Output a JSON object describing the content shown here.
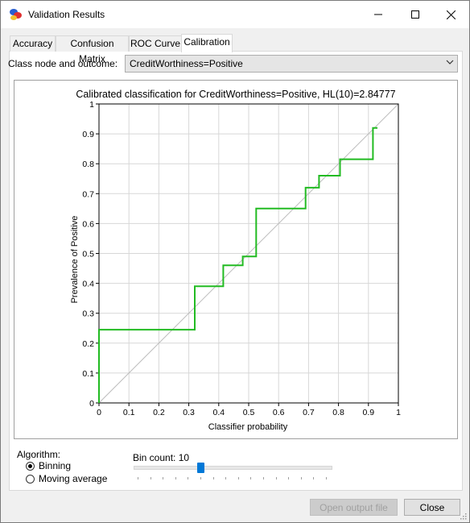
{
  "window": {
    "title": "Validation Results"
  },
  "tabs": [
    {
      "label": "Accuracy",
      "active": false
    },
    {
      "label": "Confusion Matrix",
      "active": false
    },
    {
      "label": "ROC Curve",
      "active": false
    },
    {
      "label": "Calibration",
      "active": true
    }
  ],
  "class_node": {
    "label": "Class node and outcome:",
    "value": "CreditWorthiness=Positive"
  },
  "algorithm": {
    "label": "Algorithm:",
    "options": [
      {
        "label": "Binning",
        "selected": true
      },
      {
        "label": "Moving average",
        "selected": false
      }
    ]
  },
  "bin_count": {
    "label": "Bin count: 10",
    "value": 10,
    "min": 1,
    "max": 30
  },
  "buttons": {
    "open_output": "Open output file",
    "close": "Close"
  },
  "colors": {
    "curve": "#22bb22",
    "diagonal": "#bdbdbd",
    "grid": "#d7d7d7"
  },
  "chart_data": {
    "type": "line",
    "title": "Calibrated classification for CreditWorthiness=Positive, HL(10)=2.84777",
    "xlabel": "Classifier probability",
    "ylabel": "Prevalence of Positive",
    "xlim": [
      0,
      1
    ],
    "ylim": [
      0,
      1
    ],
    "x_ticks": [
      "0",
      "0.1",
      "0.2",
      "0.3",
      "0.4",
      "0.5",
      "0.6",
      "0.7",
      "0.8",
      "0.9",
      "1"
    ],
    "y_ticks": [
      "0",
      "0.1",
      "0.2",
      "0.3",
      "0.4",
      "0.5",
      "0.6",
      "0.7",
      "0.8",
      "0.9",
      "1"
    ],
    "grid": true,
    "series": [
      {
        "x": [
          0,
          0,
          0.32,
          0.32,
          0.415,
          0.415,
          0.48,
          0.48,
          0.525,
          0.525,
          0.69,
          0.69,
          0.735,
          0.735,
          0.805,
          0.805,
          0.915,
          0.915,
          0.93
        ],
        "y": [
          0,
          0.245,
          0.245,
          0.39,
          0.39,
          0.46,
          0.46,
          0.49,
          0.49,
          0.65,
          0.65,
          0.72,
          0.72,
          0.76,
          0.76,
          0.815,
          0.815,
          0.92,
          0.92
        ]
      }
    ]
  }
}
